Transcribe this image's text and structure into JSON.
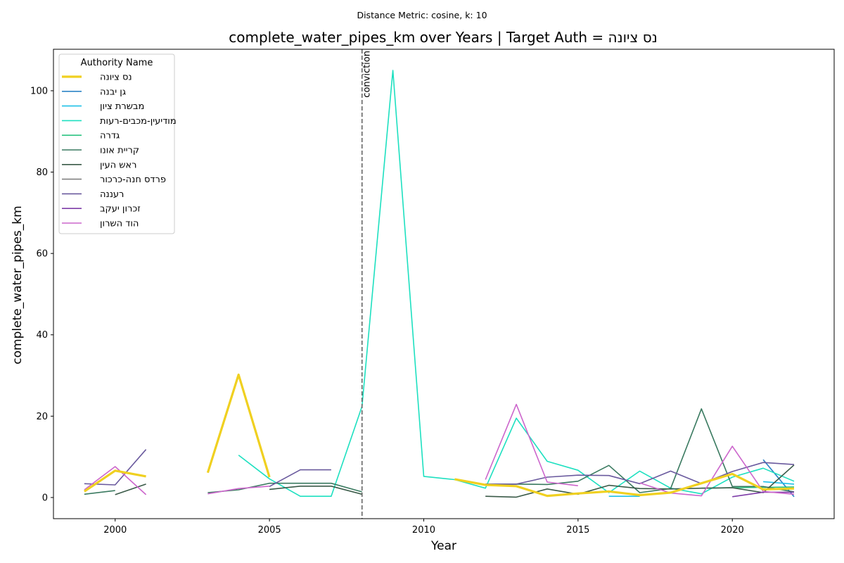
{
  "chart_data": {
    "type": "line",
    "suptitle": "Distance Metric: cosine, k: 10",
    "title": "complete_water_pipes_km over Years | Target Auth = נס ציונה",
    "xlabel": "Year",
    "ylabel": "complete_water_pipes_km",
    "xlim": [
      1998,
      2023.3
    ],
    "ylim": [
      -5.2,
      110.2
    ],
    "x_ticks": [
      2000,
      2005,
      2010,
      2015,
      2020
    ],
    "y_ticks": [
      0,
      20,
      40,
      60,
      80,
      100
    ],
    "grid": false,
    "legend": {
      "title": "Authority Name",
      "placement": "top-left"
    },
    "annotation": {
      "x": 2008,
      "label": "conviction"
    },
    "series": [
      {
        "name": "נס ציונה",
        "color": "#f0d020",
        "target": true,
        "points": [
          [
            1999,
            1.5
          ],
          [
            2000,
            6.6
          ],
          [
            2001,
            5.2
          ],
          [
            2003,
            6.1
          ],
          [
            2004,
            30.2
          ],
          [
            2005,
            5.0
          ],
          [
            2011,
            4.5
          ],
          [
            2012,
            3.1
          ],
          [
            2013,
            2.8
          ],
          [
            2014,
            0.4
          ],
          [
            2015,
            1.0
          ],
          [
            2016,
            1.5
          ],
          [
            2017,
            0.6
          ],
          [
            2018,
            1.2
          ],
          [
            2019,
            3.5
          ],
          [
            2020,
            5.8
          ],
          [
            2021,
            2.0
          ],
          [
            2022,
            2.2
          ]
        ]
      },
      {
        "name": "גן יבנה",
        "color": "#2d85c6",
        "points": [
          [
            2021,
            9.3
          ],
          [
            2022,
            0.2
          ]
        ]
      },
      {
        "name": "מבשרת ציון",
        "color": "#1ec0e8",
        "points": [
          [
            2016,
            0.3
          ],
          [
            2017,
            0.3
          ],
          [
            2021,
            3.9
          ],
          [
            2022,
            3.3
          ]
        ]
      },
      {
        "name": "מודיעין-מכבים-רעות",
        "color": "#1de0c0",
        "points": [
          [
            2004,
            10.4
          ],
          [
            2005,
            4.6
          ],
          [
            2006,
            0.3
          ],
          [
            2007,
            0.3
          ],
          [
            2008,
            22.4
          ],
          [
            2009,
            105.0
          ],
          [
            2010,
            5.2
          ],
          [
            2011,
            4.4
          ],
          [
            2012,
            2.3
          ],
          [
            2013,
            19.5
          ],
          [
            2014,
            8.9
          ],
          [
            2015,
            6.7
          ],
          [
            2016,
            1.2
          ],
          [
            2017,
            6.5
          ],
          [
            2018,
            2.3
          ],
          [
            2019,
            0.9
          ],
          [
            2020,
            5.0
          ],
          [
            2021,
            7.2
          ],
          [
            2022,
            4.0
          ]
        ]
      },
      {
        "name": "גדרה",
        "color": "#2ec482",
        "points": [
          [
            2019,
            2.3
          ],
          [
            2020,
            2.4
          ],
          [
            2021,
            2.5
          ],
          [
            2022,
            2.6
          ]
        ]
      },
      {
        "name": "קריית אונו",
        "color": "#3a7a60",
        "points": [
          [
            1999,
            0.8
          ],
          [
            2000,
            1.7
          ],
          [
            2003,
            1.2
          ],
          [
            2004,
            1.9
          ],
          [
            2005,
            3.5
          ],
          [
            2006,
            3.5
          ],
          [
            2007,
            3.5
          ],
          [
            2008,
            1.4
          ],
          [
            2012,
            3.3
          ],
          [
            2013,
            3.3
          ],
          [
            2014,
            3.2
          ],
          [
            2015,
            4.0
          ],
          [
            2016,
            7.9
          ],
          [
            2017,
            1.2
          ],
          [
            2018,
            2.2
          ],
          [
            2019,
            21.8
          ],
          [
            2020,
            2.7
          ],
          [
            2021,
            2.7
          ],
          [
            2022,
            1.4
          ]
        ]
      },
      {
        "name": "ראש העין",
        "color": "#3a5a48",
        "points": [
          [
            2000,
            0.7
          ],
          [
            2001,
            3.3
          ],
          [
            2005,
            2.0
          ],
          [
            2006,
            2.8
          ],
          [
            2007,
            2.8
          ],
          [
            2008,
            0.8
          ],
          [
            2012,
            0.3
          ],
          [
            2013,
            0.1
          ],
          [
            2014,
            2.1
          ],
          [
            2015,
            0.8
          ],
          [
            2016,
            3.0
          ],
          [
            2017,
            2.2
          ],
          [
            2018,
            2.1
          ],
          [
            2019,
            2.3
          ],
          [
            2020,
            2.4
          ],
          [
            2021,
            1.2
          ],
          [
            2022,
            8.0
          ]
        ]
      },
      {
        "name": "פרדס חנה-כרכור",
        "color": "#808080",
        "points": []
      },
      {
        "name": "רעננה",
        "color": "#6a5a9e",
        "points": [
          [
            1999,
            3.4
          ],
          [
            2000,
            3.1
          ],
          [
            2001,
            11.8
          ],
          [
            2005,
            2.7
          ],
          [
            2006,
            6.8
          ],
          [
            2007,
            6.8
          ],
          [
            2012,
            3.3
          ],
          [
            2013,
            3.3
          ],
          [
            2014,
            5.0
          ],
          [
            2015,
            5.5
          ],
          [
            2016,
            5.4
          ],
          [
            2017,
            3.4
          ],
          [
            2018,
            6.5
          ],
          [
            2019,
            3.4
          ],
          [
            2020,
            6.4
          ],
          [
            2021,
            8.6
          ],
          [
            2022,
            8.1
          ]
        ]
      },
      {
        "name": "זכרון יעקב",
        "color": "#7e3da8",
        "points": [
          [
            2020,
            0.2
          ],
          [
            2021,
            1.3
          ],
          [
            2022,
            1.3
          ]
        ]
      },
      {
        "name": "הוד השרון",
        "color": "#cc66cc",
        "points": [
          [
            1999,
            1.9
          ],
          [
            2000,
            7.6
          ],
          [
            2001,
            0.7
          ],
          [
            2003,
            0.9
          ],
          [
            2004,
            2.2
          ],
          [
            2005,
            2.8
          ],
          [
            2012,
            4.4
          ],
          [
            2013,
            22.9
          ],
          [
            2014,
            3.8
          ],
          [
            2015,
            2.9
          ],
          [
            2017,
            3.6
          ],
          [
            2018,
            1.1
          ],
          [
            2019,
            0.4
          ],
          [
            2020,
            12.6
          ],
          [
            2021,
            1.5
          ],
          [
            2022,
            0.8
          ]
        ]
      }
    ]
  }
}
